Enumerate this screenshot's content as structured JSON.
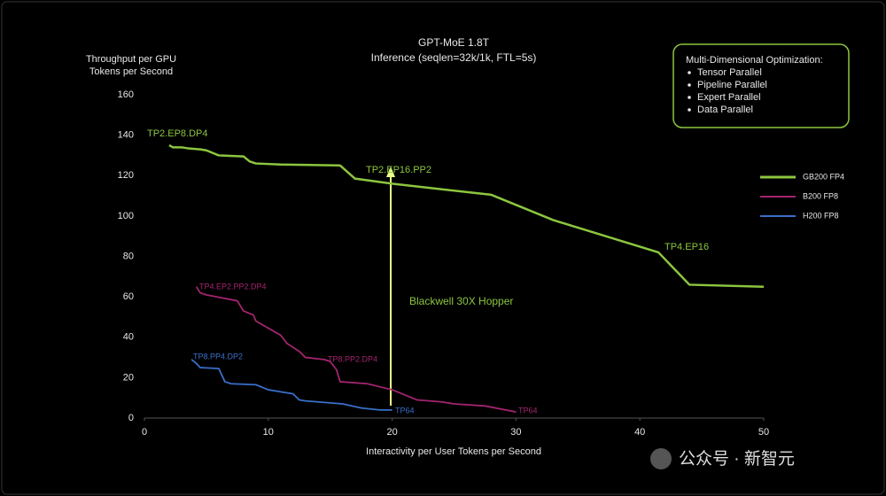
{
  "chart_data": {
    "type": "line",
    "title": "GPT-MoE 1.8T",
    "subtitle": "Inference (seqlen=32k/1k, FTL=5s)",
    "y_label": [
      "Throughput per GPU",
      "Tokens per Second"
    ],
    "x_label": "Interactivity per User Tokens per Second",
    "xlim": [
      0,
      50
    ],
    "xticks": [
      0,
      10,
      20,
      30,
      40,
      50
    ],
    "ylim": [
      0,
      160
    ],
    "yticks": [
      0,
      20,
      40,
      60,
      80,
      100,
      120,
      140,
      160
    ],
    "grid": false,
    "legend": "right",
    "series": [
      {
        "name": "GB200 FP4",
        "color": "#8cc63f",
        "x": [
          2,
          2.3,
          3,
          3.5,
          4.5,
          5,
          6,
          8,
          8.5,
          9,
          11,
          15.8,
          17,
          20,
          28,
          33,
          41.5,
          44,
          50
        ],
        "values": [
          135,
          134,
          134,
          133.5,
          133,
          132.5,
          130,
          129.5,
          127,
          126,
          125.5,
          125,
          118.5,
          116,
          110.5,
          98,
          82,
          66,
          65
        ]
      },
      {
        "name": "B200 FP8",
        "color": "#a3246f",
        "x": [
          4.2,
          4.5,
          5,
          7.5,
          8,
          8.8,
          9,
          11,
          11.5,
          12.5,
          13,
          14.5,
          15,
          15.5,
          15.8,
          18,
          20,
          22,
          24,
          25,
          27.5,
          30
        ],
        "values": [
          65,
          62,
          61,
          58,
          53,
          51,
          48,
          41,
          37,
          33,
          30,
          29,
          28,
          24,
          18,
          17,
          14,
          9,
          8,
          7,
          6,
          3
        ]
      },
      {
        "name": "H200 FP8",
        "color": "#3a6fc8",
        "x": [
          3.8,
          4.2,
          4.5,
          6,
          6.5,
          7,
          9,
          10,
          11,
          12,
          12.5,
          13,
          16,
          17.5,
          19,
          20
        ],
        "values": [
          29,
          27,
          25,
          24.5,
          18,
          17,
          16.5,
          14,
          13,
          12,
          9,
          8.5,
          7,
          5,
          4,
          4
        ]
      }
    ],
    "annotations": [
      {
        "text": "TP2.EP8.DP4",
        "color": "#8cc63f"
      },
      {
        "text": "TP2.EP16.PP2",
        "color": "#8cc63f"
      },
      {
        "text": "TP4.EP16",
        "color": "#8cc63f"
      },
      {
        "text": "TP4.EP2.PP2.DP4",
        "color": "#a3246f"
      },
      {
        "text": "TP8.PP2.DP4",
        "color": "#a3246f"
      },
      {
        "text": "TP64",
        "color": "#a3246f"
      },
      {
        "text": "TP8.PP4.DP2",
        "color": "#3a6fc8"
      },
      {
        "text": "TP64",
        "color": "#3a6fc8"
      },
      {
        "text": "Blackwell 30X Hopper",
        "color": "#8cc63f"
      }
    ],
    "note": {
      "title": "Multi-Dimensional Optimization:",
      "items": [
        "Tensor Parallel",
        "Pipeline Parallel",
        "Expert Parallel",
        "Data Parallel"
      ]
    }
  },
  "watermark": "公众号 · 新智元"
}
